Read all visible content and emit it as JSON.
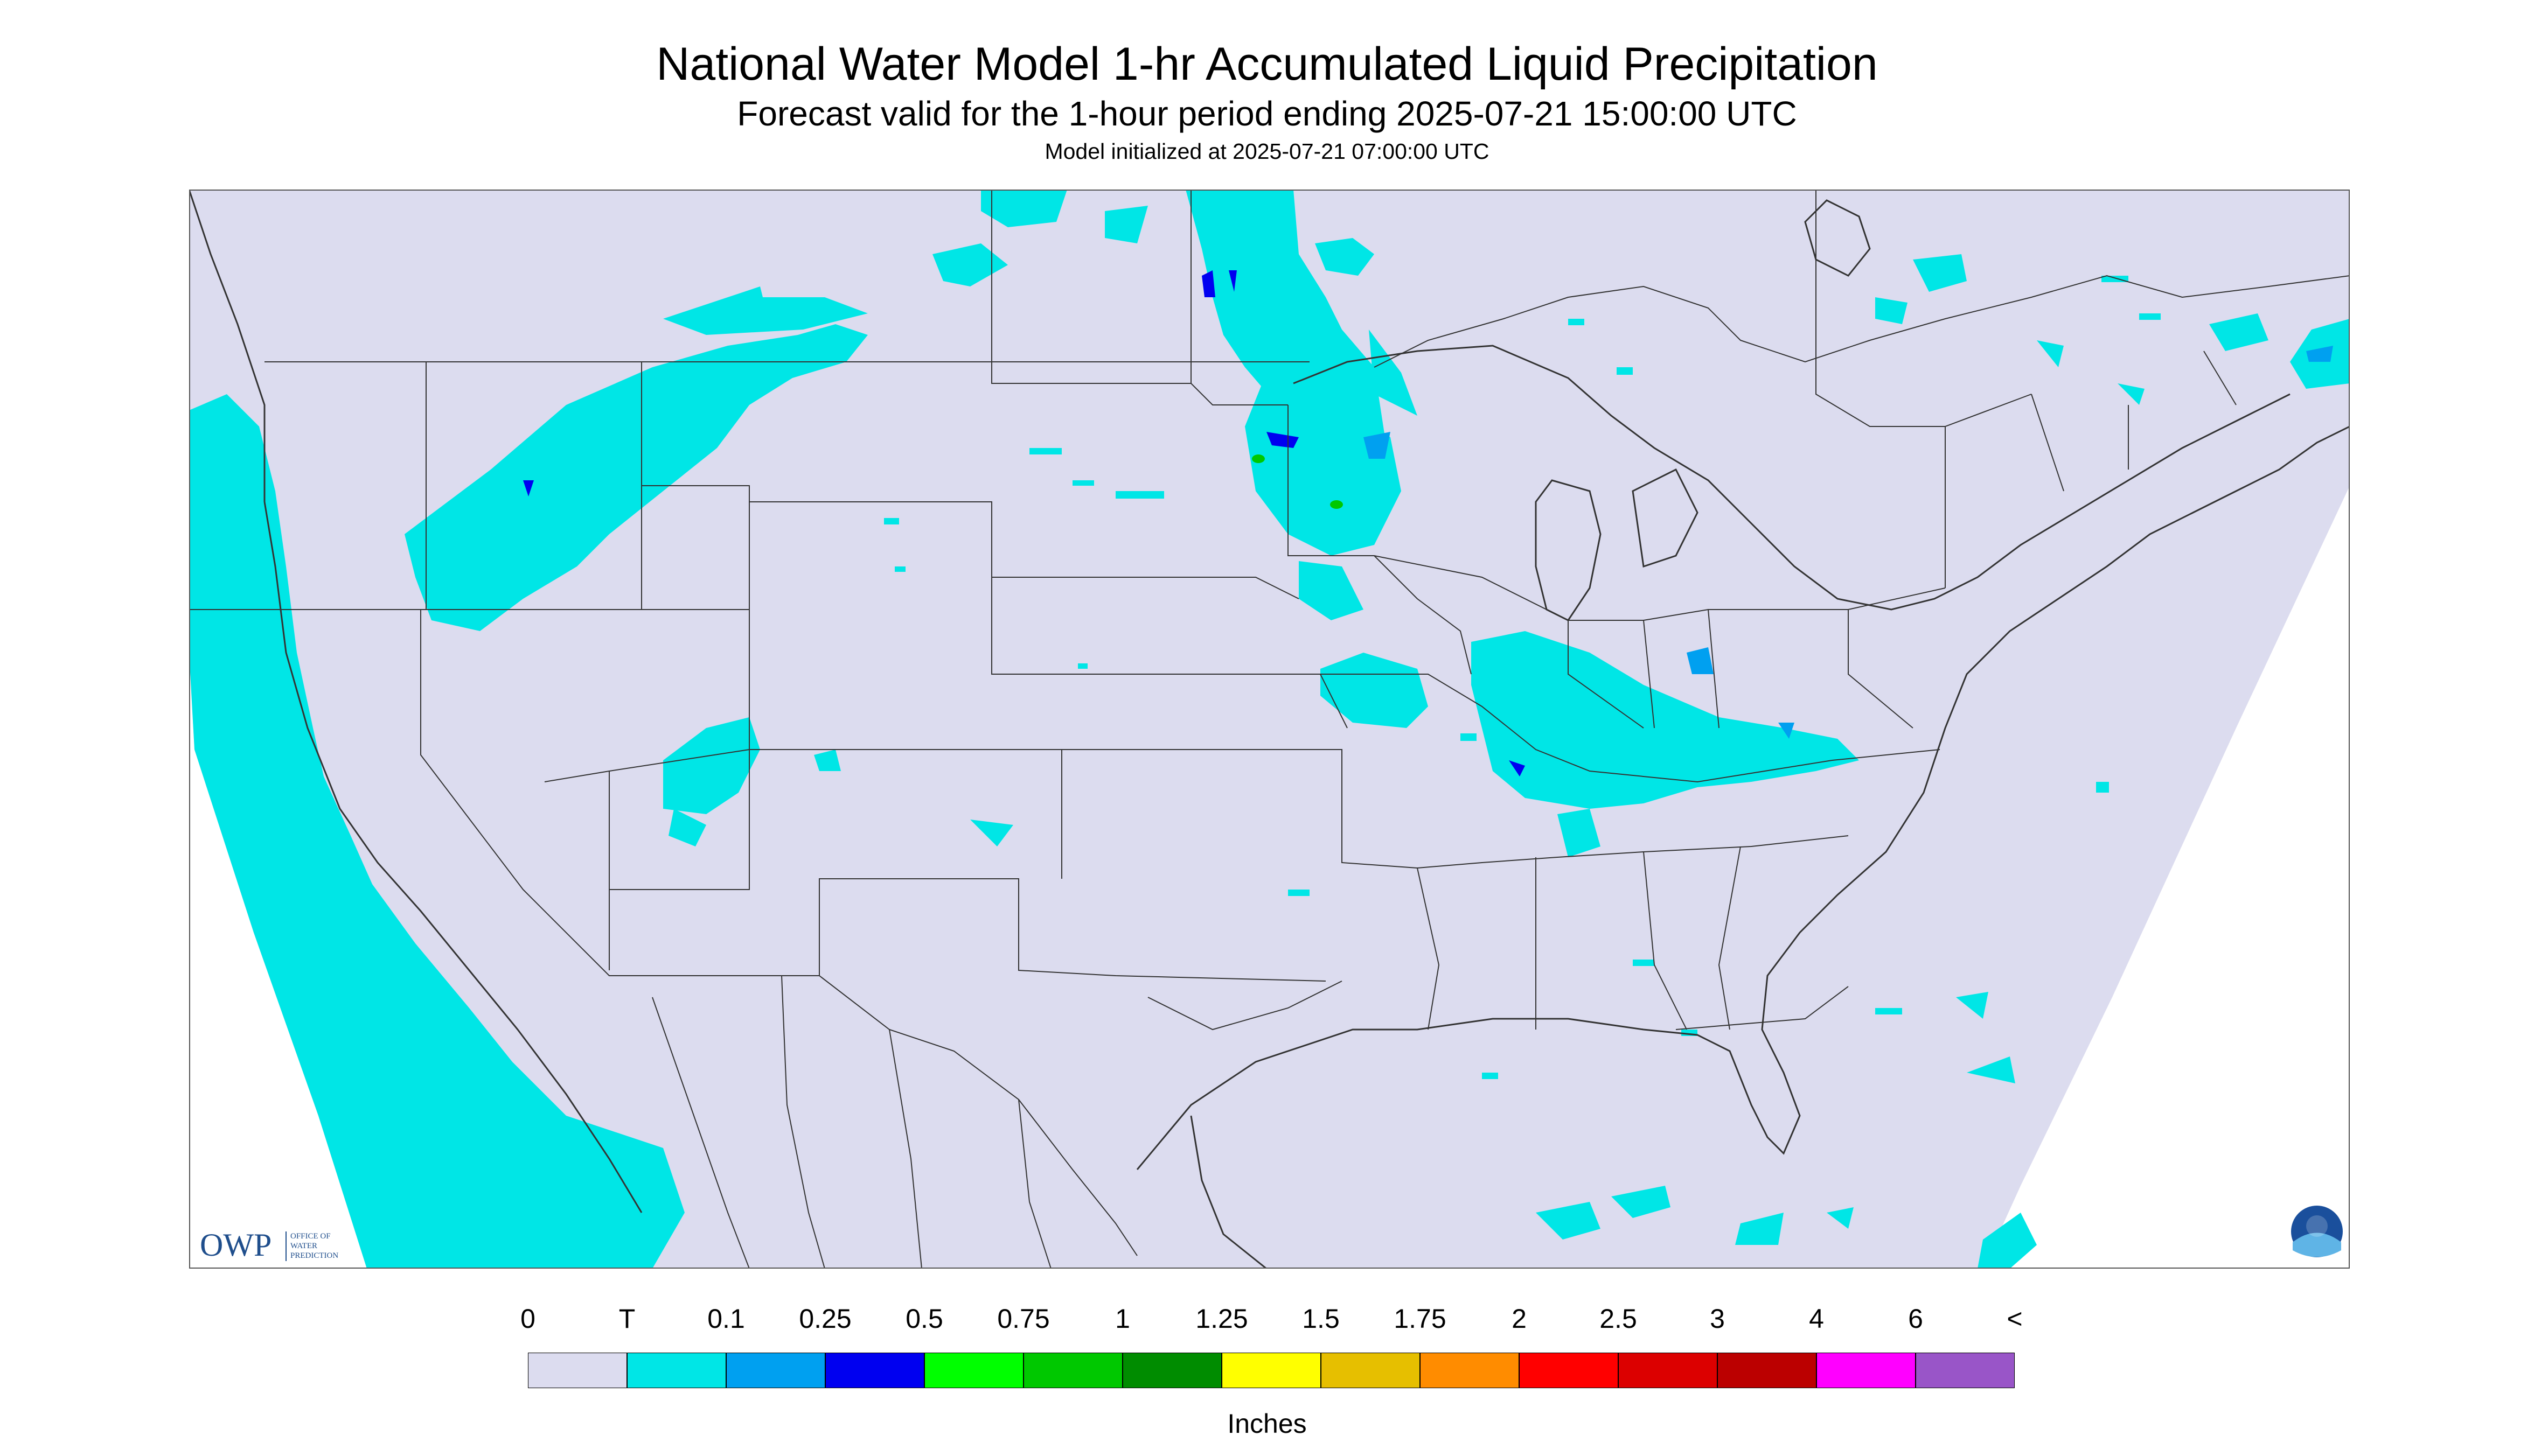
{
  "header": {
    "title": "National Water Model 1-hr Accumulated Liquid Precipitation",
    "subtitle": "Forecast valid for the 1-hour period ending 2025-07-21 15:00:00 UTC",
    "init_line": "Model initialized at 2025-07-21 07:00:00 UTC"
  },
  "logos": {
    "owp": {
      "acronym": "OWP",
      "text_lines": [
        "OFFICE OF",
        "WATER",
        "PREDICTION"
      ]
    },
    "noaa": {
      "text": "NOAA"
    }
  },
  "colors": {
    "background_no_precip": "#dcdcef",
    "outside_domain": "#ffffff",
    "boundaries": "#333333"
  },
  "legend": {
    "units": "Inches",
    "tick_labels": [
      "0",
      "T",
      "0.1",
      "0.25",
      "0.5",
      "0.75",
      "1",
      "1.25",
      "1.5",
      "1.75",
      "2",
      "2.5",
      "3",
      "4",
      "6",
      "<"
    ],
    "bins": [
      "#dcdcef",
      "#00e6e6",
      "#00a0f0",
      "#0000f0",
      "#00ff00",
      "#00c800",
      "#008c00",
      "#ffff00",
      "#e6bf00",
      "#ff8c00",
      "#ff0000",
      "#dc0000",
      "#bb0000",
      "#ff00ff",
      "#9955c8"
    ]
  }
}
